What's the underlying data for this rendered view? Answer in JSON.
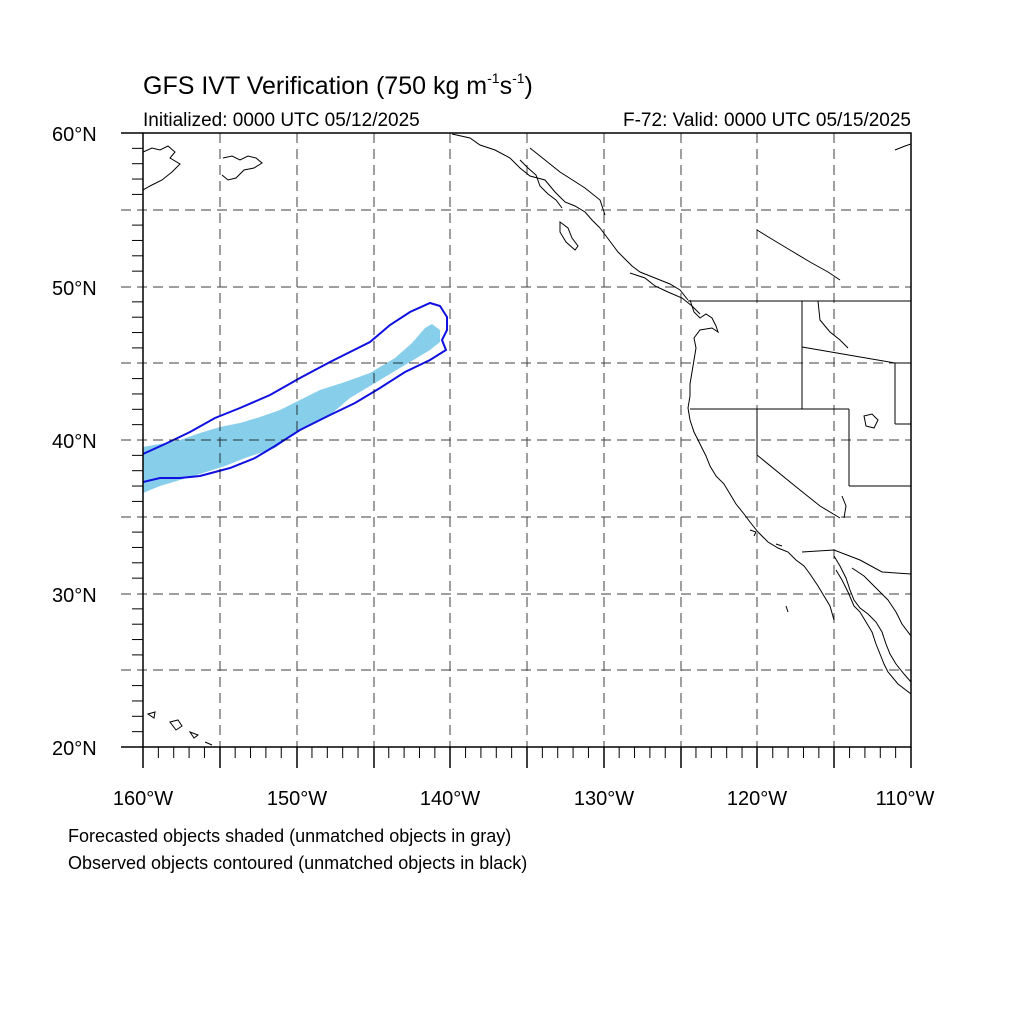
{
  "title": {
    "text": "GFS IVT Verification (750 kg m",
    "sup1": "-1",
    "mid": "s",
    "sup2": "-1",
    "close": ")"
  },
  "subtitle_left": "Initialized: 0000 UTC 05/12/2025",
  "subtitle_right": "F-72: Valid: 0000 UTC 05/15/2025",
  "notes": [
    "Forecasted objects shaded (unmatched objects in gray)",
    "Observed objects contoured (unmatched objects in black)"
  ],
  "map": {
    "lon_range": [
      -160,
      -110
    ],
    "lat_range": [
      20,
      60
    ],
    "lon_labels": [
      "160°W",
      "150°W",
      "140°W",
      "130°W",
      "120°W",
      "110°W"
    ],
    "lat_labels": [
      "60°N",
      "50°N",
      "40°N",
      "30°N",
      "20°N"
    ],
    "grid": "dashed every 5°",
    "forecast_shade_color": "#87CEEB",
    "observed_contour_color": "#1010E0",
    "coastline_color": "#000000"
  }
}
